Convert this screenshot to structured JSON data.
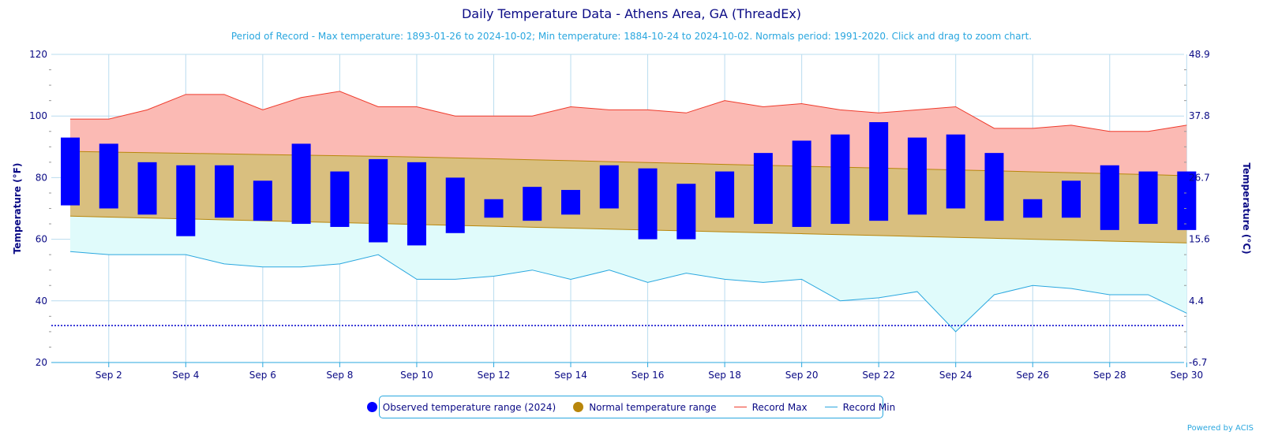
{
  "title": "Daily Temperature Data - Athens Area, GA (ThreadEx)",
  "subtitle": "Period of Record - Max temperature: 1893-01-26 to 2024-10-02; Min temperature: 1884-10-24 to 2024-10-02. Normals period: 1991-2020. Click and drag to zoom chart.",
  "credits": "Powered by ACIS",
  "legend": {
    "observed": "Observed temperature range (2024)",
    "normal": "Normal temperature range",
    "record_max": "Record Max",
    "record_min": "Record Min"
  },
  "colors": {
    "observed": "#0000ff",
    "normal_fill": "#d9bf7f",
    "normal_dot": "#b8860b",
    "normal_line": "#b8860b",
    "record_max_line": "#ef3b2c",
    "record_max_fill": "#fbbab4",
    "record_min_line": "#2aa7df",
    "record_min_fill": "#e0fbfb",
    "freezing_line": "#0000cc",
    "grid": "#b9dcef",
    "axis_text": "#0a0a85"
  },
  "chart_data": {
    "type": "bar",
    "x_days": [
      1,
      2,
      3,
      4,
      5,
      6,
      7,
      8,
      9,
      10,
      11,
      12,
      13,
      14,
      15,
      16,
      17,
      18,
      19,
      20,
      21,
      22,
      23,
      24,
      25,
      26,
      27,
      28,
      29,
      30
    ],
    "x_tick_labels": [
      "Sep 2",
      "Sep 4",
      "Sep 6",
      "Sep 8",
      "Sep 10",
      "Sep 12",
      "Sep 14",
      "Sep 16",
      "Sep 18",
      "Sep 20",
      "Sep 22",
      "Sep 24",
      "Sep 26",
      "Sep 28",
      "Sep 30"
    ],
    "ylabel_left": "Temperature (°F)",
    "ylabel_right": "Temperature (°C)",
    "ylim": [
      20,
      120
    ],
    "y_ticks_f": [
      "20",
      "40",
      "60",
      "80",
      "100",
      "120"
    ],
    "y_ticks_c": [
      "-6.7",
      "4.4",
      "15.6",
      "26.7",
      "37.8",
      "48.9"
    ],
    "freezing_line_f": 32,
    "series": [
      {
        "name": "Observed temperature range (2024)",
        "low": [
          71,
          70,
          68,
          61,
          67,
          66,
          65,
          64,
          59,
          58,
          62,
          67,
          66,
          68,
          70,
          60,
          60,
          67,
          65,
          64,
          65,
          66,
          68,
          70,
          66,
          67,
          67,
          63,
          65,
          63
        ],
        "high": [
          93,
          91,
          85,
          84,
          84,
          79,
          91,
          82,
          86,
          85,
          80,
          73,
          77,
          76,
          84,
          83,
          78,
          82,
          88,
          92,
          94,
          98,
          93,
          94,
          88,
          73,
          79,
          84,
          82,
          82
        ]
      },
      {
        "name": "Normal temperature range",
        "low": [
          67.5,
          67.2,
          66.9,
          66.6,
          66.3,
          66.0,
          65.7,
          65.4,
          65.1,
          64.8,
          64.5,
          64.2,
          63.9,
          63.6,
          63.3,
          63.0,
          62.7,
          62.4,
          62.1,
          61.8,
          61.5,
          61.2,
          60.9,
          60.6,
          60.3,
          60.0,
          59.7,
          59.4,
          59.1,
          58.8
        ],
        "high": [
          88.5,
          88.3,
          88.1,
          87.9,
          87.7,
          87.5,
          87.3,
          87.1,
          86.9,
          86.7,
          86.4,
          86.1,
          85.8,
          85.5,
          85.2,
          84.9,
          84.6,
          84.3,
          84.0,
          83.7,
          83.4,
          83.1,
          82.8,
          82.5,
          82.2,
          81.9,
          81.6,
          81.3,
          81.0,
          80.6
        ]
      },
      {
        "name": "Record Max",
        "values": [
          99,
          99,
          102,
          107,
          107,
          102,
          106,
          108,
          103,
          103,
          100,
          100,
          100,
          103,
          102,
          102,
          101,
          105,
          103,
          104,
          102,
          101,
          102,
          103,
          96,
          96,
          97,
          95,
          95,
          97
        ]
      },
      {
        "name": "Record Min",
        "values": [
          56,
          55,
          55,
          55,
          52,
          51,
          51,
          52,
          55,
          47,
          47,
          48,
          50,
          47,
          50,
          46,
          49,
          47,
          46,
          47,
          40,
          41,
          43,
          30,
          42,
          45,
          44,
          42,
          42,
          36
        ]
      }
    ]
  }
}
